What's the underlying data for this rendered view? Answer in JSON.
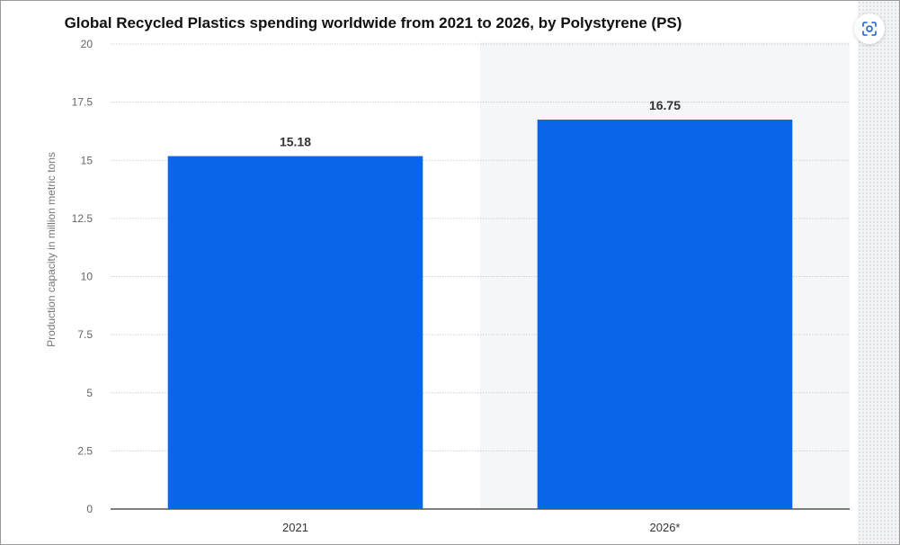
{
  "chart_data": {
    "type": "bar",
    "title": "Global Recycled Plastics spending worldwide from 2021 to 2026, by Polystyrene (PS)",
    "ylabel": "Production capacity in million metric tons",
    "xlabel": "",
    "categories": [
      "2021",
      "2026*"
    ],
    "values": [
      15.18,
      16.75
    ],
    "value_labels": [
      "15.18",
      "16.75"
    ],
    "ylim": [
      0,
      20
    ],
    "yticks": [
      "0",
      "2.5",
      "5",
      "7.5",
      "10",
      "12.5",
      "15",
      "17.5",
      "20"
    ],
    "forecast_shading_category": "2026*",
    "grid": true,
    "legend": "none",
    "colors": {
      "bar": "#0a66e8",
      "forecast_bg": "#f5f6f8",
      "grid": "#cfcfcf",
      "axis": "#333333"
    }
  },
  "ui": {
    "screenshot_icon": "screenshot-focus-icon"
  }
}
